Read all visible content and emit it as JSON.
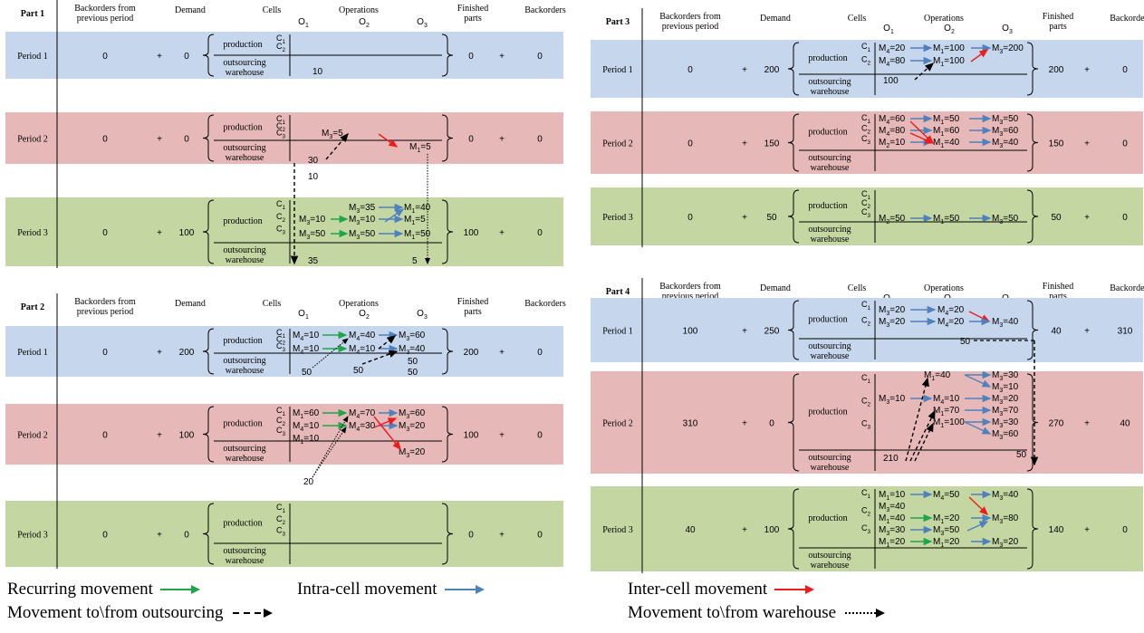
{
  "colors": {
    "period1": "#c6d6ec",
    "period2": "#e6b8b8",
    "period3": "#c4d7a2",
    "recurring": "#1fa64a",
    "intra": "#4f81bd",
    "inter": "#ee1c1c",
    "dashed": "#000000"
  },
  "headers": {
    "backorders_prev": [
      "Backorders from",
      "previous period"
    ],
    "demand": "Demand",
    "cells": "Cells",
    "operations": "Operations",
    "finished": [
      "Finished",
      "parts"
    ],
    "backorders": "Backorders",
    "ops": [
      "O",
      "O",
      "O"
    ],
    "ops_sub": [
      "1",
      "2",
      "3"
    ]
  },
  "labels": {
    "production": "production",
    "outsourcing": "outsourcing",
    "warehouse": "warehouse",
    "plus": "+",
    "c": "C",
    "cells_sub": [
      "1",
      "2",
      "3"
    ]
  },
  "parts": [
    {
      "title": "Part 1",
      "periods": [
        {
          "label": "Period 1",
          "back_prev": "0",
          "demand": "0",
          "finished": "0",
          "back": "0"
        },
        {
          "label": "Period 2",
          "back_prev": "0",
          "demand": "0",
          "finished": "0",
          "back": "0"
        },
        {
          "label": "Period 3",
          "back_prev": "0",
          "demand": "100",
          "finished": "100",
          "back": "0"
        }
      ]
    },
    {
      "title": "Part 2",
      "periods": [
        {
          "label": "Period 1",
          "back_prev": "0",
          "demand": "200",
          "finished": "200",
          "back": "0"
        },
        {
          "label": "Period 2",
          "back_prev": "0",
          "demand": "100",
          "finished": "100",
          "back": "0"
        },
        {
          "label": "Period 3",
          "back_prev": "0",
          "demand": "0",
          "finished": "0",
          "back": "0"
        }
      ]
    },
    {
      "title": "Part 3",
      "periods": [
        {
          "label": "Period 1",
          "back_prev": "0",
          "demand": "200",
          "finished": "200",
          "back": "0"
        },
        {
          "label": "Period 2",
          "back_prev": "0",
          "demand": "150",
          "finished": "150",
          "back": "0"
        },
        {
          "label": "Period 3",
          "back_prev": "0",
          "demand": "50",
          "finished": "50",
          "back": "0"
        }
      ]
    },
    {
      "title": "Part 4",
      "periods": [
        {
          "label": "Period 1",
          "back_prev": "100",
          "demand": "250",
          "finished": "40",
          "back": "310"
        },
        {
          "label": "Period 2",
          "back_prev": "310",
          "demand": "0",
          "finished": "270",
          "back": "40"
        },
        {
          "label": "Period 3",
          "back_prev": "40",
          "demand": "100",
          "finished": "140",
          "back": "0"
        }
      ]
    }
  ],
  "values": {
    "p1": {
      "p1_out": "10",
      "p2_m1": "M",
      "p2_m1s": "3",
      "p2_m1v": "=5",
      "p2_m2": "M",
      "p2_m2s": "1",
      "p2_m2v": "=5",
      "p2_out": "30",
      "p2_wh": "10",
      "p3": [
        "M",
        "3",
        "=35",
        "M",
        "1",
        "=40",
        "M",
        "3",
        "=10",
        "M",
        "3",
        "=10",
        "M",
        "1",
        "=5",
        "M",
        "3",
        "=50",
        "M",
        "3",
        "=50",
        "M",
        "1",
        "=50"
      ],
      "p3_out": "35",
      "p3_wh": "5"
    },
    "p2": {
      "p1": [
        "M",
        "4",
        "=10",
        "M",
        "4",
        "=40",
        "M",
        "3",
        "=60",
        "M",
        "4",
        "=10",
        "M",
        "4",
        "=10",
        "M",
        "3",
        "=40"
      ],
      "p1_w1": "50",
      "p1_w2": "50",
      "p1_w3": "50",
      "p2": [
        "M",
        "1",
        "=60",
        "M",
        "4",
        "=70",
        "M",
        "3",
        "=60",
        "M",
        "4",
        "=10",
        "M",
        "4",
        "=30",
        "M",
        "3",
        "=20",
        "M",
        "1",
        "=10",
        "M",
        "3",
        "=20"
      ],
      "p2_w": "20"
    },
    "p3": {
      "p1": [
        "M",
        "4",
        "=20",
        "M",
        "1",
        "=100",
        "M",
        "3",
        "=200",
        "M",
        "4",
        "=80",
        "M",
        "1",
        "=100"
      ],
      "p1_out": "100",
      "p2": [
        "M",
        "4",
        "=60",
        "M",
        "1",
        "=50",
        "M",
        "3",
        "=50",
        "M",
        "4",
        "=80",
        "M",
        "1",
        "=60",
        "M",
        "3",
        "=60",
        "M",
        "2",
        "=10",
        "M",
        "1",
        "=40",
        "M",
        "3",
        "=40"
      ],
      "p3": [
        "M",
        "2",
        "=50",
        "M",
        "1",
        "=50",
        "M",
        "3",
        "=50"
      ]
    },
    "p4": {
      "p1": [
        "M",
        "3",
        "=20",
        "M",
        "4",
        "=20",
        "M",
        "3",
        "=20",
        "M",
        "4",
        "=20",
        "M",
        "3",
        "=40"
      ],
      "p1_out": "50",
      "p2": [
        "M",
        "1",
        "=40",
        "M",
        "3",
        "=30",
        "M",
        "3",
        "=10",
        "M",
        "3",
        "=10",
        "M",
        "4",
        "=10",
        "M",
        "3",
        "=20",
        "M",
        "1",
        "=70",
        "M",
        "3",
        "=70",
        "M",
        "1",
        "=100",
        "M",
        "3",
        "=30",
        "M",
        "3",
        "=60"
      ],
      "p2_out": "210",
      "p2_wh": "50",
      "p3": [
        "M",
        "1",
        "=10",
        "M",
        "4",
        "=50",
        "M",
        "3",
        "=40",
        "M",
        "3",
        "=40",
        "M",
        "1",
        "=40",
        "M",
        "1",
        "=20",
        "M",
        "3",
        "=80",
        "M",
        "3",
        "=30",
        "M",
        "3",
        "=50",
        "M",
        "1",
        "=20",
        "M",
        "1",
        "=20",
        "M",
        "3",
        "=20"
      ]
    }
  },
  "legend": {
    "recurring": "Recurring movement",
    "intra": "Intra-cell movement",
    "inter": "Inter-cell movement",
    "outsourcing": "Movement to\\from outsourcing",
    "warehouse": "Movement to\\from warehouse"
  }
}
